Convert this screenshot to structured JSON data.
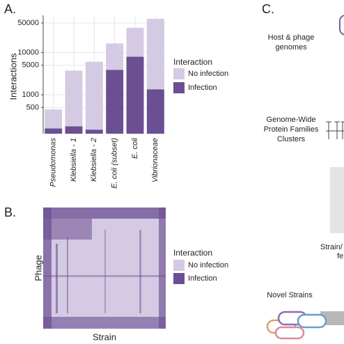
{
  "panel_labels": [
    "A.",
    "B.",
    "C."
  ],
  "chart_data": {
    "type": "bar",
    "stacked": true,
    "log_scale": true,
    "y_label": "Interactions",
    "categories": [
      "Pseudomonas",
      "Klebsiella - 1",
      "Klebsiella - 2",
      "E. coli (subset)",
      "E. coli",
      "Vibrionaceae"
    ],
    "legend_title": "Interaction",
    "series": [
      {
        "name": "No infection",
        "color": "#d5cae3",
        "values": [
          290,
          3540,
          5900,
          12500,
          30400,
          61500
        ]
      },
      {
        "name": "Infection",
        "color": "#6b4f92",
        "values": [
          160,
          180,
          150,
          3900,
          8000,
          1350
        ]
      }
    ],
    "ylim": [
      120,
      76000
    ],
    "yticks": [
      500,
      1000,
      5000,
      10000,
      50000
    ],
    "grid": true
  },
  "heatmap": {
    "x_label": "Strain",
    "y_label": "Phage",
    "legend_title": "Interaction",
    "legend": [
      {
        "name": "No infection",
        "color": "#d5cae3"
      },
      {
        "name": "Infection",
        "color": "#6b4f92"
      }
    ]
  },
  "diagram": {
    "genomes": [
      "Host & phage",
      "genomes"
    ],
    "clusters": [
      "Genome-Wide",
      "Protein Families",
      "Clusters"
    ],
    "features": [
      "Strain/",
      "fe"
    ],
    "novel": "Novel Strains"
  }
}
